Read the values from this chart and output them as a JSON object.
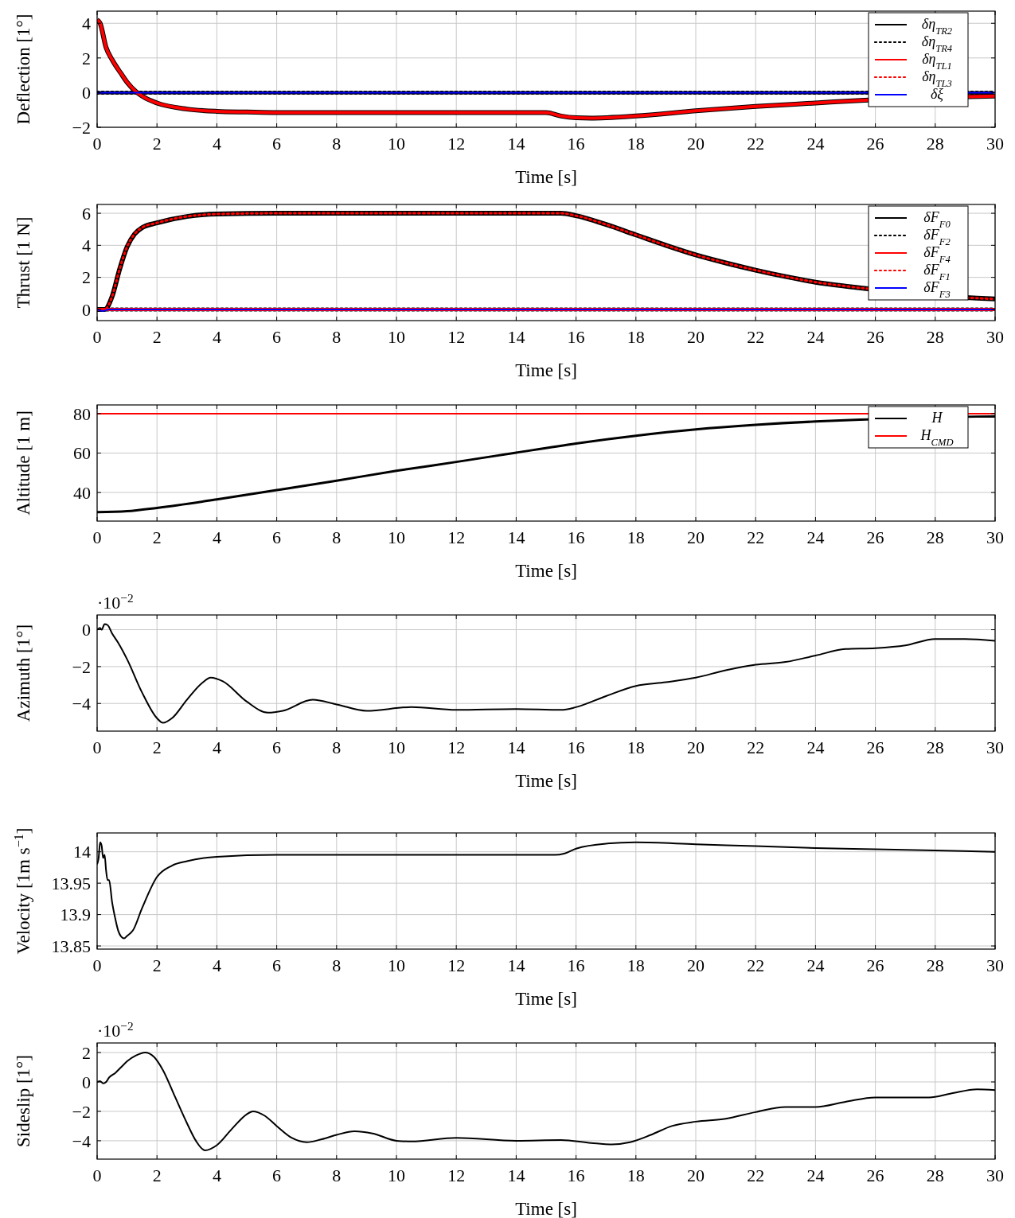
{
  "chart_data": [
    {
      "type": "line",
      "xlabel": "Time [s]",
      "ylabel": "Deflection [1°]",
      "xlim": [
        0,
        30
      ],
      "xticks": [
        0,
        2,
        4,
        6,
        8,
        10,
        12,
        14,
        16,
        18,
        20,
        22,
        24,
        26,
        28,
        30
      ],
      "ylim": [
        -2,
        4.7
      ],
      "yticks": [
        -2,
        0,
        2,
        4
      ],
      "grid": true,
      "legend": "top right",
      "series": [
        {
          "name": "δη$_{TR2}$",
          "color": "#000000",
          "line_style": "solid",
          "x": [
            0,
            0.1,
            0.3,
            0.5,
            0.8,
            1,
            1.3,
            1.6,
            2,
            3,
            4,
            5,
            6,
            8,
            15,
            15.5,
            16,
            16.5,
            17,
            18,
            20,
            22,
            24,
            25.5,
            29.4,
            30
          ],
          "values": [
            4.2,
            4.0,
            2.6,
            1.9,
            1.1,
            0.6,
            0.05,
            -0.3,
            -0.6,
            -0.95,
            -1.08,
            -1.12,
            -1.15,
            -1.15,
            -1.15,
            -1.35,
            -1.45,
            -1.47,
            -1.45,
            -1.35,
            -1.05,
            -0.8,
            -0.6,
            -0.45,
            -0.22,
            -0.2
          ]
        },
        {
          "name": "δη$_{TR4}$",
          "color": "#000000",
          "line_style": "dotted",
          "x": [
            0,
            30
          ],
          "values": [
            0,
            0
          ]
        },
        {
          "name": "δη$_{TL1}$",
          "color": "#ff0000",
          "line_style": "solid",
          "x": [
            0,
            0.1,
            0.3,
            0.5,
            0.8,
            1,
            1.3,
            1.6,
            2,
            3,
            4,
            5,
            6,
            8,
            15,
            15.5,
            16,
            16.5,
            17,
            18,
            20,
            22,
            24,
            25.5,
            29.4,
            30
          ],
          "values": [
            4.2,
            4.0,
            2.6,
            1.9,
            1.1,
            0.6,
            0.05,
            -0.3,
            -0.6,
            -0.95,
            -1.08,
            -1.12,
            -1.15,
            -1.15,
            -1.15,
            -1.35,
            -1.45,
            -1.47,
            -1.45,
            -1.35,
            -1.05,
            -0.8,
            -0.6,
            -0.45,
            -0.22,
            -0.2
          ]
        },
        {
          "name": "δη$_{TL3}$",
          "color": "#ff0000",
          "line_style": "dotted"
        },
        {
          "name": "δξ",
          "color": "#0000ff",
          "line_style": "solid",
          "x": [
            0,
            30
          ],
          "values": [
            0,
            0
          ]
        }
      ]
    },
    {
      "type": "line",
      "xlabel": "Time [s]",
      "ylabel": "Thrust [1 N]",
      "xlim": [
        0,
        30
      ],
      "xticks": [
        0,
        2,
        4,
        6,
        8,
        10,
        12,
        14,
        16,
        18,
        20,
        22,
        24,
        26,
        28,
        30
      ],
      "ylim": [
        -0.7,
        6.55
      ],
      "yticks": [
        0,
        2,
        4,
        6
      ],
      "grid": true,
      "legend": "top right",
      "series": [
        {
          "name": "δF$_{F0}$",
          "color": "#000000",
          "line_style": "solid",
          "x": [
            0,
            0.25,
            0.5,
            0.75,
            1,
            1.25,
            1.5,
            2,
            3,
            4,
            6,
            15,
            15.5,
            16,
            17,
            18,
            19,
            20,
            21,
            22,
            23,
            24,
            25,
            25.7,
            29.4,
            30
          ],
          "values": [
            0,
            0,
            0.8,
            2.5,
            3.9,
            4.7,
            5.1,
            5.4,
            5.8,
            5.95,
            6,
            6,
            6,
            5.85,
            5.3,
            4.65,
            4.0,
            3.4,
            2.9,
            2.45,
            2.05,
            1.7,
            1.45,
            1.3,
            0.7,
            0.65
          ]
        },
        {
          "name": "δF$_{F2}$",
          "color": "#000000",
          "line_style": "dotted",
          "x": [
            0,
            30
          ],
          "values": [
            0,
            0
          ]
        },
        {
          "name": "δF$_{F4}$",
          "color": "#ff0000",
          "line_style": "solid",
          "x": [
            0,
            30
          ],
          "values": [
            0,
            0
          ]
        },
        {
          "name": "δF$_{F1}$",
          "color": "#ff0000",
          "line_style": "dotted",
          "x": [
            0,
            0.25,
            0.5,
            0.75,
            1,
            1.25,
            1.5,
            2,
            3,
            4,
            6,
            15,
            15.5,
            16,
            17,
            18,
            19,
            20,
            21,
            22,
            23,
            24,
            25,
            25.7,
            29.4,
            30
          ],
          "values": [
            0,
            0,
            0.8,
            2.5,
            3.9,
            4.7,
            5.1,
            5.4,
            5.8,
            5.95,
            6,
            6,
            6,
            5.85,
            5.3,
            4.65,
            4.0,
            3.4,
            2.9,
            2.45,
            2.05,
            1.7,
            1.45,
            1.3,
            0.7,
            0.65
          ]
        },
        {
          "name": "δF$_{F3}$",
          "color": "#0000ff",
          "line_style": "solid",
          "x": [
            0,
            0.2,
            0.4,
            30
          ],
          "values": [
            0,
            -0.1,
            0,
            0
          ]
        }
      ]
    },
    {
      "type": "line",
      "xlabel": "Time [s]",
      "ylabel": "Altitude [1 m]",
      "xlim": [
        0,
        30
      ],
      "xticks": [
        0,
        2,
        4,
        6,
        8,
        10,
        12,
        14,
        16,
        18,
        20,
        22,
        24,
        26,
        28,
        30
      ],
      "ylim": [
        25.5,
        84.4
      ],
      "yticks": [
        40,
        60,
        80
      ],
      "grid": true,
      "legend": "top right",
      "series": [
        {
          "name": "H",
          "color": "#000000",
          "line_style": "solid",
          "x": [
            0,
            1,
            2,
            4,
            6,
            8,
            10,
            12,
            14,
            16,
            18,
            20,
            22,
            24,
            25.5,
            29.4,
            30
          ],
          "values": [
            30,
            30.5,
            32.2,
            36.5,
            41.2,
            46,
            51,
            55.5,
            60.2,
            64.8,
            68.8,
            72,
            74.3,
            76,
            76.9,
            78.5,
            78.6
          ]
        },
        {
          "name": "H$_{CMD}$",
          "color": "#ff0000",
          "line_style": "solid",
          "x": [
            0,
            30
          ],
          "values": [
            80,
            80
          ]
        }
      ]
    },
    {
      "type": "line",
      "xlabel": "Time [s]",
      "ylabel": "Azimuth [1°]",
      "annotations": [
        "·10$^{−2}$"
      ],
      "xlim": [
        0,
        30
      ],
      "xticks": [
        0,
        2,
        4,
        6,
        8,
        10,
        12,
        14,
        16,
        18,
        20,
        22,
        24,
        26,
        28,
        30
      ],
      "ylim": [
        -5.5,
        0.8
      ],
      "yticks": [
        -4,
        -2,
        0
      ],
      "grid": true,
      "series": [
        {
          "color": "#000000",
          "line_style": "solid",
          "x": [
            0,
            0.1,
            0.15,
            0.25,
            0.35,
            0.5,
            0.7,
            1,
            1.5,
            2,
            2.2,
            2.5,
            3,
            3.5,
            3.8,
            4.2,
            5,
            5.7,
            6.2,
            7.2,
            8,
            9,
            10.5,
            12,
            14,
            15.5,
            16,
            17,
            18,
            19,
            20,
            21,
            22,
            23,
            24,
            25,
            26,
            27,
            28,
            29,
            30
          ],
          "values": [
            0,
            0.1,
            0,
            0.3,
            0.25,
            -0.2,
            -0.7,
            -1.6,
            -3.4,
            -4.8,
            -5.05,
            -4.8,
            -3.8,
            -2.9,
            -2.6,
            -2.8,
            -3.9,
            -4.5,
            -4.4,
            -3.8,
            -4.05,
            -4.4,
            -4.2,
            -4.35,
            -4.3,
            -4.35,
            -4.2,
            -3.6,
            -3.05,
            -2.85,
            -2.6,
            -2.2,
            -1.9,
            -1.75,
            -1.4,
            -1.05,
            -1.0,
            -0.85,
            -0.5,
            -0.5,
            -0.6
          ]
        }
      ]
    },
    {
      "type": "line",
      "xlabel": "Time [s]",
      "ylabel": "Velocity [1m s$^{−1}$]",
      "xlim": [
        0,
        30
      ],
      "xticks": [
        0,
        2,
        4,
        6,
        8,
        10,
        12,
        14,
        16,
        18,
        20,
        22,
        24,
        26,
        28,
        30
      ],
      "ylim": [
        13.845,
        14.03
      ],
      "yticks": [
        13.85,
        13.9,
        13.95,
        14
      ],
      "grid": true,
      "series": [
        {
          "color": "#000000",
          "line_style": "solid",
          "x": [
            0,
            0.05,
            0.1,
            0.15,
            0.2,
            0.25,
            0.3,
            0.35,
            0.4,
            0.5,
            0.6,
            0.7,
            0.8,
            0.9,
            1,
            1.2,
            1.5,
            2,
            2.5,
            3,
            4,
            6,
            15.3,
            15.6,
            16,
            17,
            18,
            20,
            22,
            24,
            26,
            28,
            30
          ],
          "values": [
            13.98,
            13.99,
            14.015,
            14.01,
            13.99,
            13.995,
            13.97,
            13.955,
            13.955,
            13.92,
            13.895,
            13.875,
            13.865,
            13.862,
            13.866,
            13.875,
            13.91,
            13.96,
            13.978,
            13.985,
            13.992,
            13.995,
            13.995,
            13.997,
            14.005,
            14.013,
            14.015,
            14.012,
            14.009,
            14.006,
            14.004,
            14.002,
            14.0
          ]
        }
      ]
    },
    {
      "type": "line",
      "xlabel": "Time [s]",
      "ylabel": "Sideslip [1°]",
      "annotations": [
        "·10$^{−2}$"
      ],
      "xlim": [
        0,
        30
      ],
      "xticks": [
        0,
        2,
        4,
        6,
        8,
        10,
        12,
        14,
        16,
        18,
        20,
        22,
        24,
        26,
        28,
        30
      ],
      "ylim": [
        -5.25,
        2.65
      ],
      "yticks": [
        -4,
        -2,
        0,
        2
      ],
      "grid": true,
      "series": [
        {
          "color": "#000000",
          "line_style": "solid",
          "x": [
            0,
            0.1,
            0.2,
            0.3,
            0.4,
            0.6,
            0.8,
            1,
            1.3,
            1.6,
            1.9,
            2.2,
            2.6,
            3,
            3.3,
            3.6,
            4,
            4.5,
            5,
            5.2,
            5.6,
            6,
            6.5,
            7,
            7.5,
            8,
            8.6,
            9.2,
            10,
            10.5,
            12,
            14,
            15.5,
            16.5,
            17.2,
            17.8,
            18.5,
            19.2,
            20,
            21,
            22,
            23,
            24,
            25,
            26,
            27,
            27.8,
            28.5,
            29.4,
            30
          ],
          "values": [
            0,
            0.05,
            -0.1,
            0,
            0.3,
            0.6,
            1.0,
            1.4,
            1.8,
            2.0,
            1.7,
            0.8,
            -1.0,
            -2.8,
            -4.0,
            -4.65,
            -4.3,
            -3.2,
            -2.2,
            -2.0,
            -2.3,
            -3.0,
            -3.8,
            -4.1,
            -3.9,
            -3.6,
            -3.35,
            -3.5,
            -4.0,
            -4.05,
            -3.8,
            -4.0,
            -3.95,
            -4.15,
            -4.25,
            -4.1,
            -3.6,
            -3.0,
            -2.7,
            -2.5,
            -2.05,
            -1.7,
            -1.7,
            -1.35,
            -1.05,
            -1.05,
            -1.05,
            -0.8,
            -0.5,
            -0.55
          ]
        }
      ]
    }
  ]
}
